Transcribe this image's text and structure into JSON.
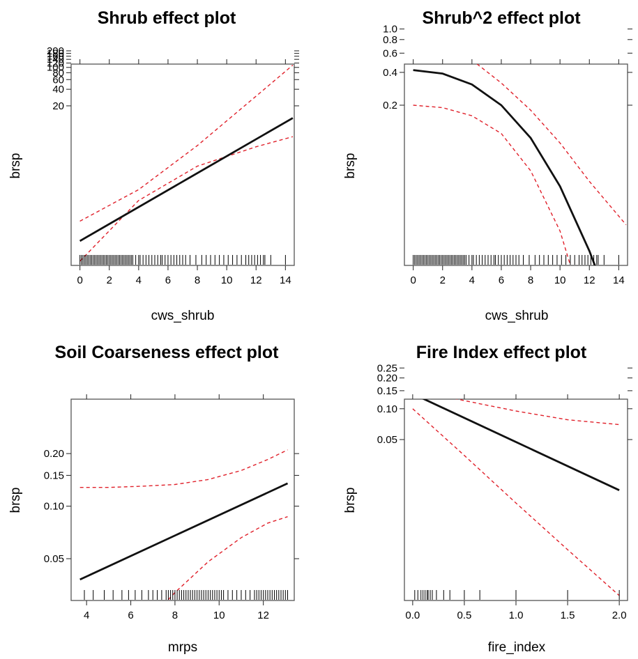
{
  "chart_data": [
    {
      "type": "line",
      "title": "Shrub effect plot",
      "xlabel": "cws_shrub",
      "ylabel": "brsp",
      "xlim": [
        -0.6,
        14.6
      ],
      "ylim_log10": [
        -1.6,
        2.06
      ],
      "x_ticks": [
        0,
        2,
        4,
        6,
        8,
        10,
        12,
        14
      ],
      "x_tick_labels": [
        "0",
        "2",
        "4",
        "6",
        "8",
        "10",
        "12",
        "14"
      ],
      "y_ticks": [
        20,
        40,
        60,
        80,
        100,
        120,
        140,
        160,
        180,
        200
      ],
      "y_tick_labels": [
        "20",
        "40",
        "60",
        "80",
        "100",
        "120",
        "140",
        "160",
        "180",
        "200"
      ],
      "fit": {
        "x": [
          0,
          14.5
        ],
        "y": [
          0.07,
          12
        ]
      },
      "lower": {
        "x": [
          0,
          4,
          8,
          12,
          14.5
        ],
        "y": [
          0.03,
          0.38,
          1.6,
          3.6,
          5.5
        ]
      },
      "upper": {
        "x": [
          0,
          4,
          8,
          12,
          14.5
        ],
        "y": [
          0.16,
          0.6,
          3.8,
          30,
          110
        ]
      },
      "rug": [
        0,
        0.1,
        0.2,
        0.3,
        0.4,
        0.5,
        0.6,
        0.7,
        0.8,
        0.9,
        1.0,
        1.1,
        1.2,
        1.3,
        1.4,
        1.5,
        1.6,
        1.7,
        1.8,
        1.9,
        2.0,
        2.1,
        2.2,
        2.3,
        2.4,
        2.5,
        2.6,
        2.7,
        2.8,
        2.9,
        3.0,
        3.1,
        3.2,
        3.3,
        3.4,
        3.5,
        3.6,
        3.8,
        4.0,
        4.1,
        4.3,
        4.5,
        4.7,
        4.9,
        5.1,
        5.3,
        5.5,
        5.6,
        5.8,
        6.0,
        6.2,
        6.4,
        6.6,
        6.8,
        7.0,
        7.2,
        7.5,
        7.9,
        8.3,
        8.6,
        8.9,
        9.2,
        9.5,
        9.8,
        10.1,
        10.4,
        10.7,
        11.0,
        11.3,
        11.5,
        11.7,
        11.9,
        12.1,
        12.3,
        12.5,
        12.6,
        13.0,
        14.0
      ]
    },
    {
      "type": "line",
      "title": "Shrub^2 effect plot",
      "xlabel": "cws_shrub",
      "ylabel": "brsp",
      "xlim": [
        -0.6,
        14.6
      ],
      "y_ticks": [
        0.2,
        0.4,
        0.6,
        0.8,
        1.0
      ],
      "y_tick_labels": [
        "0.2",
        "0.4",
        "0.6",
        "0.8",
        "1.0"
      ],
      "x_ticks": [
        0,
        2,
        4,
        6,
        8,
        10,
        12,
        14
      ],
      "x_tick_labels": [
        "0",
        "2",
        "4",
        "6",
        "8",
        "10",
        "12",
        "14"
      ],
      "fit": {
        "x": [
          0,
          2,
          4,
          6,
          8,
          10,
          12,
          14.5
        ],
        "y": [
          0.42,
          0.39,
          0.31,
          0.2,
          0.1,
          0.036,
          0.0092,
          0.0012
        ]
      },
      "lower": {
        "x": [
          0,
          2,
          4,
          6,
          8,
          10,
          12,
          14.5
        ],
        "y": [
          0.2,
          0.19,
          0.16,
          0.11,
          0.05,
          0.014,
          0.0018,
          0.0001
        ]
      },
      "upper": {
        "x": [
          0,
          2,
          4,
          6,
          8,
          10,
          12,
          14.5
        ],
        "y": [
          0.8,
          0.7,
          0.52,
          0.32,
          0.18,
          0.09,
          0.04,
          0.016
        ]
      },
      "rug": [
        0,
        0.1,
        0.2,
        0.3,
        0.4,
        0.5,
        0.6,
        0.7,
        0.8,
        0.9,
        1.0,
        1.1,
        1.2,
        1.3,
        1.4,
        1.5,
        1.6,
        1.7,
        1.8,
        1.9,
        2.0,
        2.1,
        2.2,
        2.3,
        2.4,
        2.5,
        2.6,
        2.7,
        2.8,
        2.9,
        3.0,
        3.1,
        3.2,
        3.3,
        3.4,
        3.5,
        3.6,
        3.8,
        4.0,
        4.1,
        4.3,
        4.5,
        4.7,
        4.9,
        5.1,
        5.3,
        5.5,
        5.6,
        5.8,
        6.0,
        6.2,
        6.4,
        6.6,
        6.8,
        7.0,
        7.2,
        7.5,
        7.9,
        8.3,
        8.6,
        8.9,
        9.2,
        9.5,
        9.8,
        10.1,
        10.4,
        10.7,
        11.0,
        11.3,
        11.5,
        11.7,
        11.9,
        12.1,
        12.3,
        12.5,
        12.6,
        13.0,
        14.0
      ]
    },
    {
      "type": "line",
      "title": "Soil Coarseness effect plot",
      "xlabel": "mrps",
      "ylabel": "brsp",
      "xlim": [
        3.3,
        13.4
      ],
      "x_ticks": [
        4,
        6,
        8,
        10,
        12
      ],
      "x_tick_labels": [
        "4",
        "6",
        "8",
        "10",
        "12"
      ],
      "y_ticks": [
        0.05,
        0.1,
        0.15,
        0.2
      ],
      "y_tick_labels": [
        "0.05",
        "0.10",
        "0.15",
        "0.20"
      ],
      "fit": {
        "x": [
          3.7,
          13.1
        ],
        "y": [
          0.038,
          0.135
        ]
      },
      "lower": {
        "x": [
          3.7,
          5,
          6.5,
          8,
          9.5,
          11,
          12.2,
          13.1
        ],
        "y": [
          0.009,
          0.013,
          0.02,
          0.032,
          0.048,
          0.066,
          0.08,
          0.087
        ]
      },
      "upper": {
        "x": [
          3.7,
          5,
          6.5,
          8,
          9.5,
          11,
          12.2,
          13.1
        ],
        "y": [
          0.128,
          0.128,
          0.13,
          0.133,
          0.142,
          0.16,
          0.185,
          0.21
        ]
      },
      "rug": [
        3.9,
        4.3,
        4.8,
        5.2,
        5.6,
        5.9,
        6.2,
        6.5,
        6.8,
        7.0,
        7.2,
        7.4,
        7.6,
        7.7,
        7.8,
        7.9,
        8.0,
        8.1,
        8.2,
        8.3,
        8.4,
        8.5,
        8.6,
        8.7,
        8.8,
        8.9,
        9.0,
        9.1,
        9.2,
        9.3,
        9.4,
        9.5,
        9.6,
        9.7,
        9.8,
        9.9,
        10.0,
        10.1,
        10.2,
        10.4,
        10.6,
        10.8,
        11.0,
        11.2,
        11.4,
        11.6,
        11.7,
        11.8,
        11.9,
        12.0,
        12.1,
        12.2,
        12.3,
        12.4,
        12.5,
        12.6,
        12.7,
        12.8,
        12.9,
        13.0,
        13.1
      ]
    },
    {
      "type": "line",
      "title": "Fire Index effect plot",
      "xlabel": "fire_index",
      "ylabel": "brsp",
      "xlim": [
        -0.08,
        2.08
      ],
      "x_ticks": [
        0,
        0.5,
        1,
        1.5,
        2
      ],
      "x_tick_labels": [
        "0.0",
        "0.5",
        "1.0",
        "1.5",
        "2.0"
      ],
      "y_ticks": [
        0.05,
        0.1,
        0.15,
        0.2,
        0.25
      ],
      "y_tick_labels": [
        "0.05",
        "0.10",
        "0.15",
        "0.20",
        "0.25"
      ],
      "fit": {
        "x": [
          0,
          2
        ],
        "y": [
          0.14,
          0.016
        ]
      },
      "lower": {
        "x": [
          0,
          0.5,
          1,
          1.5,
          2
        ],
        "y": [
          0.1,
          0.035,
          0.012,
          0.0042,
          0.0015
        ]
      },
      "upper": {
        "x": [
          0,
          0.2,
          0.5,
          1,
          1.5,
          2
        ],
        "y": [
          0.22,
          0.14,
          0.12,
          0.095,
          0.078,
          0.07
        ]
      },
      "rug": [
        0.02,
        0.05,
        0.08,
        0.1,
        0.12,
        0.14,
        0.15,
        0.17,
        0.19,
        0.23,
        0.3,
        0.36,
        0.5,
        0.65,
        1.0,
        1.5,
        2.0
      ]
    }
  ]
}
